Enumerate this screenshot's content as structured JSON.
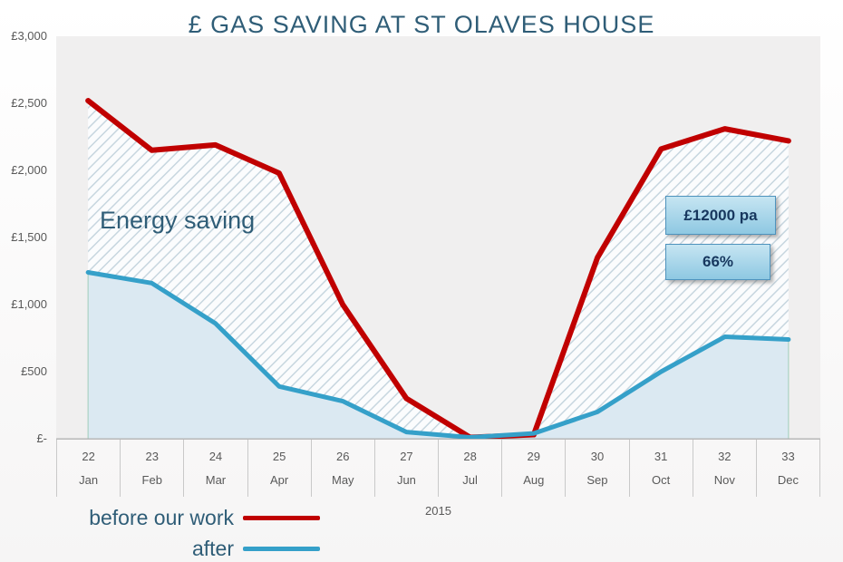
{
  "chart_data": {
    "type": "area",
    "title": "£ GAS SAVING AT ST OLAVES HOUSE",
    "x_weeks": [
      "22",
      "23",
      "24",
      "25",
      "26",
      "27",
      "28",
      "29",
      "30",
      "31",
      "32",
      "33"
    ],
    "x_months": [
      "Jan",
      "Feb",
      "Mar",
      "Apr",
      "May",
      "Jun",
      "Jul",
      "Aug",
      "Sep",
      "Oct",
      "Nov",
      "Dec"
    ],
    "year_label": "2015",
    "y_ticks": [
      "£3,000",
      "£2,500",
      "£2,000",
      "£1,500",
      "£1,000",
      "£500",
      "£-"
    ],
    "ylim": [
      0,
      3000
    ],
    "grid": false,
    "legend_position": "bottom-left",
    "series": [
      {
        "name": "before our work",
        "color": "#c00000",
        "values": [
          2520,
          2150,
          2190,
          1980,
          1000,
          300,
          10,
          30,
          1350,
          2160,
          2310,
          2220
        ]
      },
      {
        "name": "after",
        "color": "#35a0c9",
        "values": [
          1240,
          1160,
          860,
          390,
          280,
          50,
          10,
          40,
          200,
          500,
          760,
          740
        ]
      }
    ],
    "annotations": {
      "area_label": "Energy saving",
      "saving_box": "£12000 pa",
      "percent_box": "66%"
    },
    "colors": {
      "plot_background": "#f0efef",
      "after_area_fill": "#d9e8f1",
      "hatch_stripe": "#c7d6df",
      "annotation_fill": "#a9d6ea",
      "annotation_border": "#4e93bd",
      "title_text": "#2f5d77"
    }
  }
}
